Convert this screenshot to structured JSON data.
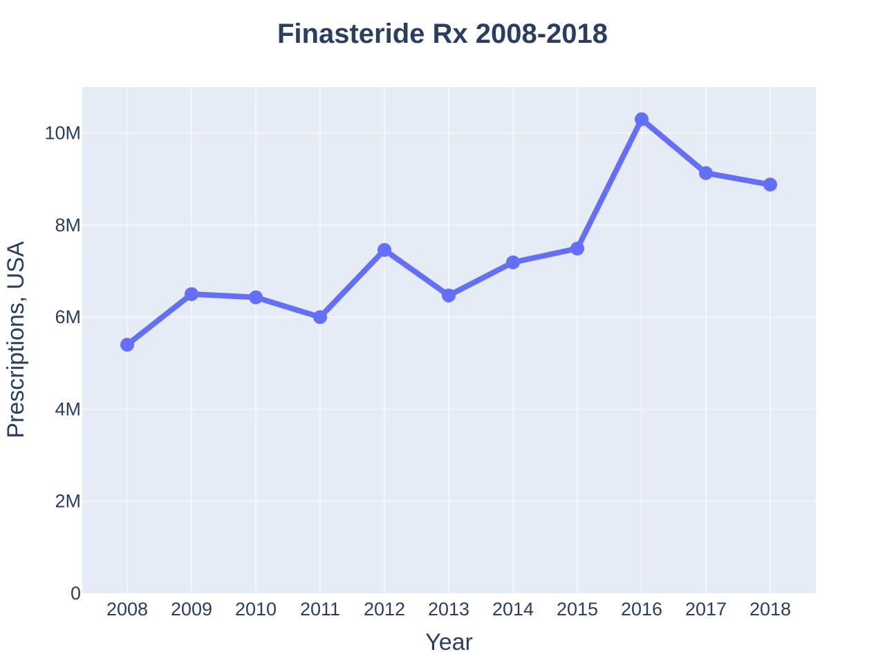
{
  "chart_data": {
    "type": "line",
    "title": "Finasteride Rx 2008-2018",
    "xlabel": "Year",
    "ylabel": "Prescriptions, USA",
    "categories": [
      "2008",
      "2009",
      "2010",
      "2011",
      "2012",
      "2013",
      "2014",
      "2015",
      "2016",
      "2017",
      "2018"
    ],
    "series": [
      {
        "values": [
          5400000,
          6500000,
          6430000,
          6000000,
          7460000,
          6470000,
          7190000,
          7490000,
          10300000,
          9130000,
          8880000
        ],
        "color": "#636efa"
      }
    ],
    "ylim": [
      0,
      11000000
    ],
    "yticks": [
      0,
      2000000,
      4000000,
      6000000,
      8000000,
      10000000
    ],
    "ytick_labels": [
      "0",
      "2M",
      "4M",
      "6M",
      "8M",
      "10M"
    ],
    "grid": true,
    "plot_background": "#e5ecf6",
    "gridline_color": "#ffffff"
  }
}
